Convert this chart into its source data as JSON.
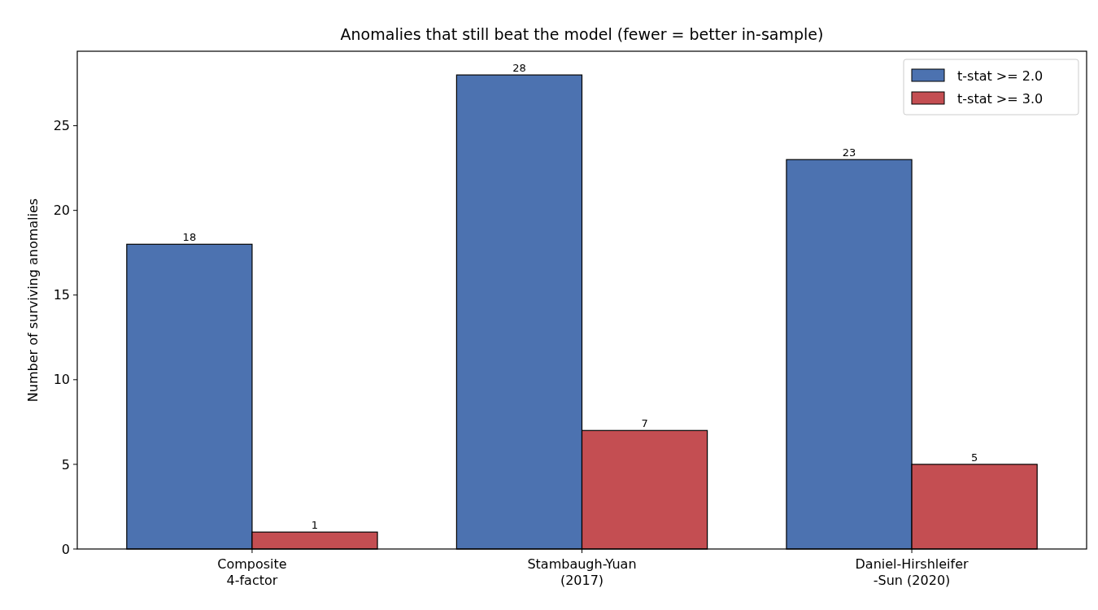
{
  "chart_data": {
    "type": "bar",
    "title": "Anomalies that still beat the model (fewer = better in-sample)",
    "ylabel": "Number of surviving anomalies",
    "categories": [
      "Composite\n4-factor",
      "Stambaugh-Yuan\n(2017)",
      "Daniel-Hirshleifer\n-Sun (2020)"
    ],
    "series": [
      {
        "name": "t-stat >= 2.0",
        "color": "#4c72b0",
        "values": [
          18,
          28,
          23
        ]
      },
      {
        "name": "t-stat >= 3.0",
        "color": "#c44e52",
        "values": [
          1,
          7,
          5
        ]
      }
    ],
    "ylim": [
      0,
      29.4
    ],
    "yticks": [
      0,
      5,
      10,
      15,
      20,
      25
    ],
    "data_labels": true,
    "legend": "top right",
    "grid": false
  }
}
